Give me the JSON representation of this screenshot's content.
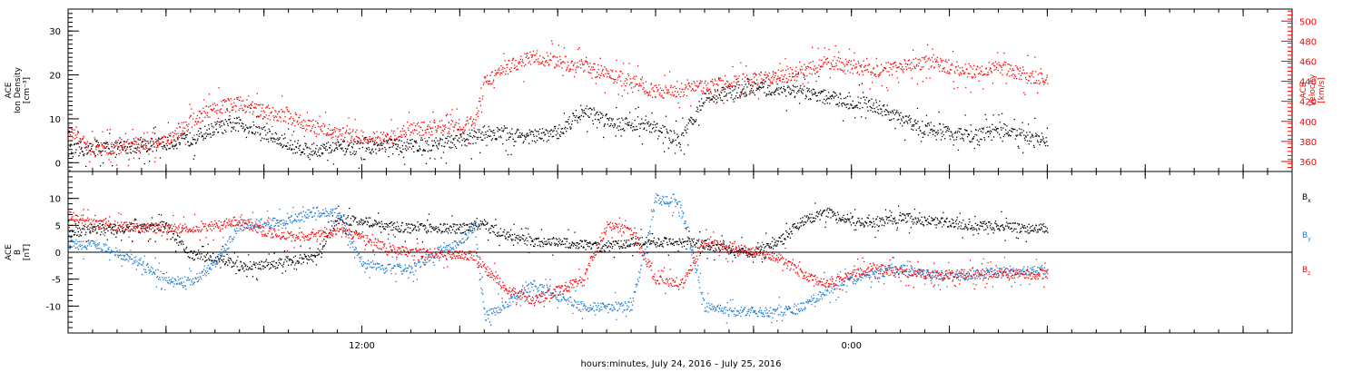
{
  "chart_data": [
    {
      "type": "scatter",
      "left_axis": {
        "label_lines": [
          "ACE",
          "Ion Density",
          "[cm⁻³]"
        ],
        "ylim": [
          -2,
          35
        ],
        "ticks": [
          0,
          10,
          20,
          30
        ]
      },
      "right_axis": {
        "label_lines": [
          "ACE",
          "Velocity",
          "[km/s]"
        ],
        "ylim": [
          350,
          512
        ],
        "ticks": [
          360,
          380,
          400,
          420,
          440,
          460,
          480,
          500
        ],
        "color": "#ff0000"
      },
      "series": [
        {
          "color": "#000000",
          "axis": "left",
          "x": [
            0,
            2,
            4,
            5,
            6,
            7,
            8,
            9,
            10,
            11,
            12,
            13,
            14,
            15,
            16,
            16.6,
            17,
            18,
            19,
            20,
            21,
            22,
            22.5,
            23,
            24,
            25,
            26,
            27,
            28,
            29,
            30,
            31,
            32,
            33,
            34,
            35,
            36,
            37,
            38,
            39,
            40
          ],
          "y": [
            3,
            3.5,
            4.5,
            5.5,
            8,
            9,
            7,
            4,
            3,
            3.5,
            3.5,
            4,
            4,
            4.5,
            5,
            6,
            7,
            6.5,
            6,
            7,
            12,
            10,
            9,
            9,
            8,
            5,
            15,
            16,
            17,
            17,
            16,
            15,
            14,
            13,
            10,
            8,
            7,
            6,
            8,
            6,
            5
          ]
        },
        {
          "color": "#ff0000",
          "axis": "right",
          "x": [
            0,
            1,
            2,
            3,
            4,
            5,
            6,
            7,
            8,
            9,
            10,
            11,
            12,
            13,
            14,
            15,
            16,
            16.6,
            17,
            18,
            19,
            20,
            21,
            22,
            23,
            24,
            25,
            26,
            27,
            28,
            29,
            30,
            31,
            32,
            33,
            34,
            35,
            36,
            37,
            38,
            39,
            40
          ],
          "y": [
            390,
            372,
            375,
            378,
            380,
            400,
            415,
            418,
            410,
            405,
            395,
            388,
            385,
            383,
            392,
            394,
            396,
            400,
            440,
            455,
            465,
            460,
            455,
            448,
            440,
            430,
            432,
            435,
            440,
            442,
            445,
            450,
            460,
            455,
            450,
            455,
            460,
            455,
            450,
            455,
            448,
            440
          ]
        }
      ]
    },
    {
      "type": "scatter",
      "left_axis": {
        "label_lines": [
          "ACE",
          "B",
          "[nT]"
        ],
        "ylim": [
          -15,
          15
        ],
        "ticks": [
          -10,
          -5,
          0,
          5,
          10
        ]
      },
      "zero_line": true,
      "legend": [
        {
          "label": "B",
          "sub": "x",
          "color": "#000000"
        },
        {
          "label": "B",
          "sub": "y",
          "color": "#1a7bd6"
        },
        {
          "label": "B",
          "sub": "z",
          "color": "#ff0000"
        }
      ],
      "series": [
        {
          "name": "Bx",
          "color": "#000000",
          "x": [
            0,
            1,
            2,
            3,
            4,
            5,
            6,
            7,
            8,
            9,
            10,
            11,
            12,
            13,
            14,
            15,
            16,
            16.6,
            17,
            18,
            19,
            20,
            21,
            22,
            23,
            24,
            25,
            26,
            27,
            28,
            29,
            30,
            31,
            32,
            33,
            34,
            35,
            36,
            37,
            38,
            39,
            40
          ],
          "y": [
            3.5,
            4.5,
            4.5,
            4.5,
            5,
            -0.5,
            -1,
            -2.5,
            -2.5,
            -1.5,
            -1,
            6,
            6,
            5,
            4.5,
            4.5,
            4.5,
            5,
            5,
            3,
            2,
            2,
            1.5,
            1,
            2,
            2,
            2,
            1.5,
            0.5,
            0,
            2,
            6,
            7.5,
            6,
            5.5,
            6.5,
            6,
            5.5,
            5,
            5,
            4.5,
            4.5
          ]
        },
        {
          "name": "By",
          "color": "#1a7bd6",
          "x": [
            0,
            1,
            2,
            3,
            4,
            5,
            6,
            7,
            8,
            9,
            10,
            11,
            12,
            13,
            14,
            15,
            16,
            16.6,
            17,
            18,
            19,
            20,
            21,
            22,
            23,
            24,
            25,
            26,
            27,
            28,
            29,
            30,
            31,
            32,
            33,
            34,
            35,
            36,
            37,
            38,
            39,
            40
          ],
          "y": [
            1.5,
            1.5,
            0,
            -2,
            -5,
            -5.5,
            -2,
            5,
            5.5,
            6,
            7.5,
            7.5,
            -2,
            -3,
            -3,
            0,
            2,
            5,
            -12,
            -9,
            -6,
            -8,
            -10,
            -10,
            -10,
            10,
            9,
            -10,
            -11,
            -11,
            -11,
            -10,
            -7,
            -5,
            -4,
            -3,
            -4,
            -4.5,
            -4,
            -3.5,
            -3.5,
            -3
          ]
        },
        {
          "name": "Bz",
          "color": "#ff0000",
          "x": [
            0,
            1,
            2,
            3,
            4,
            5,
            6,
            7,
            8,
            9,
            10,
            11,
            12,
            13,
            14,
            15,
            16,
            16.6,
            17,
            18,
            19,
            20,
            21,
            22,
            23,
            24,
            25,
            26,
            27,
            28,
            29,
            30,
            31,
            32,
            33,
            34,
            35,
            36,
            37,
            38,
            39,
            40
          ],
          "y": [
            7,
            5.5,
            5,
            4.5,
            4.5,
            4.5,
            5,
            6,
            4,
            3,
            3,
            4,
            3,
            1,
            0,
            0,
            -0.5,
            -0.5,
            -3,
            -7,
            -9,
            -7,
            -5,
            5,
            4,
            -5,
            -6,
            2,
            1,
            0,
            -1,
            -4,
            -6,
            -4,
            -3,
            -3.5,
            -4,
            -4,
            -4,
            -4,
            -4,
            -4
          ]
        }
      ]
    }
  ],
  "x_axis": {
    "xlim": [
      0,
      50
    ],
    "major_tick_labels": [
      {
        "x": 12,
        "label": "12:00"
      },
      {
        "x": 32,
        "label": "0:00"
      }
    ],
    "xlabel": "hours:minutes, July 24, 2016 – July 25, 2016"
  }
}
